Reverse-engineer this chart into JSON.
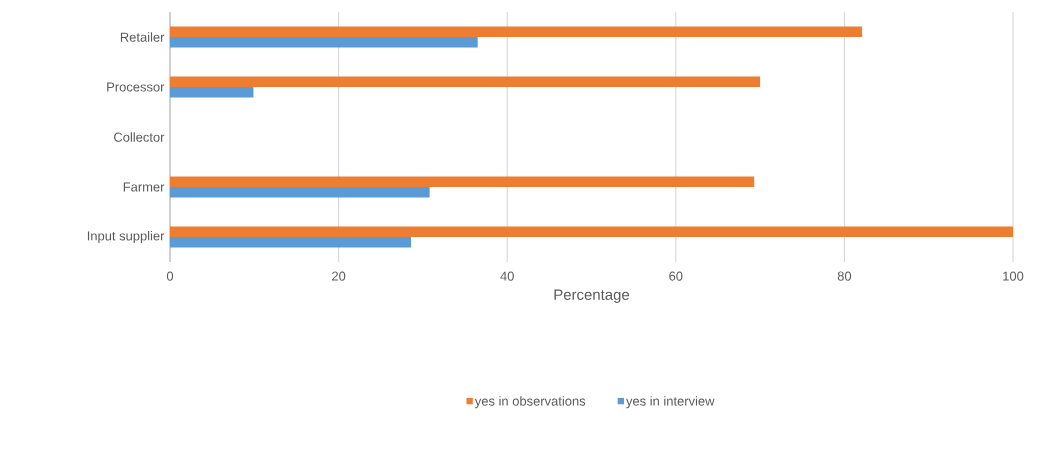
{
  "chart_data": {
    "type": "bar",
    "orientation": "horizontal",
    "categories": [
      "Retailer",
      "Processor",
      "Collector",
      "Farmer",
      "Input supplier"
    ],
    "series": [
      {
        "name": "yes in observations",
        "color": "#ed7d31",
        "values": [
          82.1,
          70.0,
          null,
          69.3,
          100
        ]
      },
      {
        "name": "yes in interview",
        "color": "#5b9bd5",
        "values": [
          36.5,
          9.9,
          null,
          30.8,
          28.6
        ]
      }
    ],
    "xlabel": "Percentage",
    "xlim": [
      0,
      100
    ],
    "xticks": [
      0,
      20,
      40,
      60,
      80,
      100
    ],
    "grid": "x",
    "legend": "bottom"
  }
}
